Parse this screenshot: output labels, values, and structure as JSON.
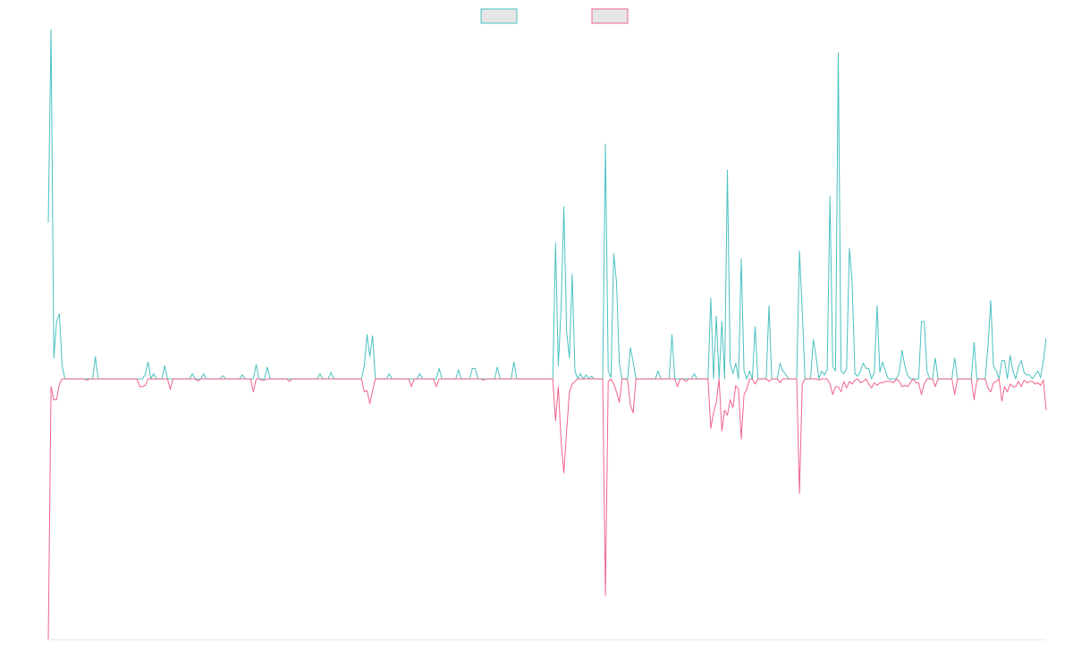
{
  "chart_data": {
    "type": "line",
    "title": "",
    "xlabel": "",
    "ylabel": "",
    "grid": false,
    "legend": "top-center",
    "ylim": [
      -1.0,
      1.35
    ],
    "x_count": 361,
    "series": [
      {
        "color": "#4bc0c0",
        "swatch_fill": "#e6e6e6",
        "spikes": [
          [
            0,
            0.6
          ],
          [
            1,
            1.34
          ],
          [
            2,
            0.08
          ],
          [
            3,
            0.22
          ],
          [
            4,
            0.25
          ],
          [
            5,
            0.05
          ],
          [
            17,
            0.085
          ],
          [
            35,
            0.018
          ],
          [
            36,
            0.065
          ],
          [
            38,
            0.02
          ],
          [
            42,
            0.05
          ],
          [
            52,
            0.02
          ],
          [
            56,
            0.02
          ],
          [
            63,
            0.012
          ],
          [
            70,
            0.015
          ],
          [
            75,
            0.055
          ],
          [
            79,
            0.045
          ],
          [
            98,
            0.02
          ],
          [
            102,
            0.025
          ],
          [
            114,
            0.05
          ],
          [
            115,
            0.17
          ],
          [
            116,
            0.085
          ],
          [
            117,
            0.165
          ],
          [
            123,
            0.02
          ],
          [
            134,
            0.02
          ],
          [
            141,
            0.04
          ],
          [
            148,
            0.035
          ],
          [
            153,
            0.04
          ],
          [
            154,
            0.04
          ],
          [
            162,
            0.045
          ],
          [
            168,
            0.065
          ],
          [
            183,
            0.52
          ],
          [
            184,
            0.05
          ],
          [
            185,
            0.27
          ],
          [
            186,
            0.66
          ],
          [
            187,
            0.18
          ],
          [
            188,
            0.08
          ],
          [
            189,
            0.4
          ],
          [
            190,
            0.03
          ],
          [
            192,
            0.02
          ],
          [
            194,
            0.015
          ],
          [
            196,
            0.01
          ],
          [
            201,
            0.9
          ],
          [
            202,
            0.03
          ],
          [
            203,
            0.005
          ],
          [
            204,
            0.48
          ],
          [
            205,
            0.37
          ],
          [
            206,
            0.06
          ],
          [
            210,
            0.12
          ],
          [
            211,
            0.065
          ],
          [
            220,
            0.03
          ],
          [
            225,
            0.17
          ],
          [
            233,
            0.02
          ],
          [
            239,
            0.31
          ],
          [
            241,
            0.24
          ],
          [
            243,
            0.22
          ],
          [
            245,
            0.8
          ],
          [
            246,
            0.06
          ],
          [
            247,
            0.02
          ],
          [
            248,
            0.06
          ],
          [
            250,
            0.46
          ],
          [
            251,
            0.03
          ],
          [
            253,
            0.03
          ],
          [
            255,
            0.2
          ],
          [
            260,
            0.28
          ],
          [
            264,
            0.06
          ],
          [
            265,
            0.03
          ],
          [
            266,
            0.018
          ],
          [
            271,
            0.49
          ],
          [
            272,
            0.26
          ],
          [
            276,
            0.15
          ],
          [
            277,
            0.085
          ],
          [
            279,
            0.03
          ],
          [
            280,
            0.015
          ],
          [
            281,
            0.035
          ],
          [
            282,
            0.7
          ],
          [
            283,
            0.048
          ],
          [
            284,
            0.03
          ],
          [
            285,
            1.25
          ],
          [
            286,
            0.03
          ],
          [
            287,
            0.02
          ],
          [
            288,
            0.04
          ],
          [
            289,
            0.5
          ],
          [
            290,
            0.37
          ],
          [
            291,
            0.02
          ],
          [
            292,
            0.01
          ],
          [
            293,
            0.03
          ],
          [
            294,
            0.06
          ],
          [
            295,
            0.04
          ],
          [
            296,
            0.04
          ],
          [
            298,
            0.025
          ],
          [
            299,
            0.28
          ],
          [
            300,
            0.025
          ],
          [
            301,
            0.065
          ],
          [
            302,
            0.03
          ],
          [
            307,
            0.025
          ],
          [
            308,
            0.11
          ],
          [
            309,
            0.05
          ],
          [
            310,
            0.015
          ],
          [
            315,
            0.22
          ],
          [
            316,
            0.22
          ],
          [
            317,
            0.03
          ],
          [
            320,
            0.08
          ],
          [
            327,
            0.08
          ],
          [
            334,
            0.14
          ],
          [
            339,
            0.125
          ],
          [
            340,
            0.3
          ],
          [
            341,
            0.05
          ],
          [
            342,
            0.03
          ],
          [
            344,
            0.07
          ],
          [
            345,
            0.07
          ],
          [
            347,
            0.09
          ],
          [
            348,
            0.03
          ],
          [
            350,
            0.045
          ],
          [
            351,
            0.07
          ],
          [
            352,
            0.025
          ],
          [
            353,
            0.015
          ],
          [
            354,
            0.015
          ],
          [
            356,
            0.015
          ],
          [
            357,
            0.03
          ],
          [
            358,
            0.005
          ],
          [
            359,
            0.07
          ],
          [
            360,
            0.155
          ]
        ]
      },
      {
        "color": "#f0648c",
        "swatch_fill": "#e6e6e6",
        "spikes": [
          [
            0,
            -1.0
          ],
          [
            1,
            -0.03
          ],
          [
            2,
            -0.08
          ],
          [
            3,
            -0.08
          ],
          [
            4,
            -0.02
          ],
          [
            14,
            -0.005
          ],
          [
            33,
            -0.03
          ],
          [
            34,
            -0.03
          ],
          [
            35,
            -0.025
          ],
          [
            44,
            -0.04
          ],
          [
            54,
            -0.008
          ],
          [
            74,
            -0.05
          ],
          [
            77,
            -0.005
          ],
          [
            78,
            -0.005
          ],
          [
            87,
            -0.01
          ],
          [
            114,
            -0.05
          ],
          [
            115,
            -0.045
          ],
          [
            116,
            -0.095
          ],
          [
            117,
            -0.045
          ],
          [
            131,
            -0.03
          ],
          [
            140,
            -0.03
          ],
          [
            157,
            -0.005
          ],
          [
            183,
            -0.16
          ],
          [
            184,
            -0.03
          ],
          [
            185,
            -0.24
          ],
          [
            186,
            -0.36
          ],
          [
            187,
            -0.2
          ],
          [
            188,
            -0.05
          ],
          [
            189,
            -0.02
          ],
          [
            190,
            -0.01
          ],
          [
            201,
            -0.83
          ],
          [
            202,
            -0.01
          ],
          [
            204,
            -0.02
          ],
          [
            205,
            -0.05
          ],
          [
            206,
            -0.09
          ],
          [
            209,
            -0.005
          ],
          [
            210,
            -0.1
          ],
          [
            211,
            -0.13
          ],
          [
            227,
            -0.03
          ],
          [
            230,
            -0.01
          ],
          [
            239,
            -0.19
          ],
          [
            240,
            -0.13
          ],
          [
            241,
            -0.09
          ],
          [
            243,
            -0.2
          ],
          [
            244,
            -0.12
          ],
          [
            245,
            -0.14
          ],
          [
            246,
            -0.08
          ],
          [
            247,
            -0.11
          ],
          [
            248,
            -0.025
          ],
          [
            249,
            -0.04
          ],
          [
            250,
            -0.23
          ],
          [
            251,
            -0.06
          ],
          [
            252,
            -0.04
          ],
          [
            255,
            -0.02
          ],
          [
            260,
            -0.01
          ],
          [
            264,
            -0.015
          ],
          [
            271,
            -0.44
          ],
          [
            272,
            -0.02
          ],
          [
            278,
            -0.005
          ],
          [
            282,
            -0.02
          ],
          [
            283,
            -0.06
          ],
          [
            284,
            -0.03
          ],
          [
            285,
            -0.03
          ],
          [
            286,
            -0.05
          ],
          [
            287,
            -0.01
          ],
          [
            288,
            -0.035
          ],
          [
            289,
            -0.01
          ],
          [
            290,
            -0.02
          ],
          [
            291,
            -0.005
          ],
          [
            293,
            -0.015
          ],
          [
            294,
            -0.01
          ],
          [
            296,
            -0.02
          ],
          [
            297,
            -0.035
          ],
          [
            298,
            -0.015
          ],
          [
            299,
            -0.025
          ],
          [
            300,
            -0.015
          ],
          [
            301,
            -0.015
          ],
          [
            302,
            -0.01
          ],
          [
            303,
            -0.01
          ],
          [
            304,
            -0.01
          ],
          [
            305,
            -0.015
          ],
          [
            307,
            -0.01
          ],
          [
            308,
            -0.03
          ],
          [
            309,
            -0.025
          ],
          [
            310,
            -0.03
          ],
          [
            311,
            -0.015
          ],
          [
            313,
            -0.015
          ],
          [
            314,
            -0.015
          ],
          [
            315,
            -0.06
          ],
          [
            316,
            -0.02
          ],
          [
            320,
            -0.03
          ],
          [
            327,
            -0.06
          ],
          [
            334,
            -0.08
          ],
          [
            335,
            -0.005
          ],
          [
            339,
            -0.035
          ],
          [
            340,
            -0.05
          ],
          [
            341,
            -0.015
          ],
          [
            342,
            -0.01
          ],
          [
            344,
            -0.085
          ],
          [
            345,
            -0.03
          ],
          [
            346,
            -0.05
          ],
          [
            347,
            -0.02
          ],
          [
            348,
            -0.03
          ],
          [
            349,
            -0.03
          ],
          [
            350,
            -0.01
          ],
          [
            351,
            -0.03
          ],
          [
            352,
            -0.005
          ],
          [
            353,
            -0.015
          ],
          [
            354,
            -0.01
          ],
          [
            355,
            -0.01
          ],
          [
            356,
            -0.02
          ],
          [
            357,
            -0.015
          ],
          [
            358,
            -0.025
          ],
          [
            359,
            -0.005
          ],
          [
            360,
            -0.12
          ]
        ]
      }
    ]
  }
}
